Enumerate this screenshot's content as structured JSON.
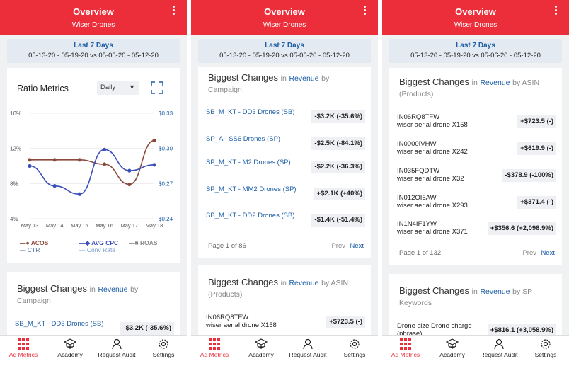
{
  "header": {
    "title": "Overview",
    "subtitle": "Wiser Drones"
  },
  "dates": {
    "period": "Last 7 Days",
    "range": "05-13-20 - 05-19-20  vs  05-06-20 - 05-12-20"
  },
  "nav": [
    {
      "label": "Ad Metrics",
      "icon": "grid-icon"
    },
    {
      "label": "Academy",
      "icon": "graduation-icon"
    },
    {
      "label": "Request Audit",
      "icon": "user-icon"
    },
    {
      "label": "Settings",
      "icon": "gear-icon"
    }
  ],
  "ratio": {
    "title": "Ratio Metrics",
    "granularity": "Daily",
    "legend": {
      "acos": "ACOS",
      "avg_cpc": "AVG CPC",
      "roas": "ROAS",
      "ctr": "CTR",
      "conv_rate": "Conv Rate"
    },
    "colors": {
      "acos": "#8b4a3a",
      "avg_cpc": "#3a4fb8",
      "roas": "#aaaaaa",
      "ctr": "#4a6fa0",
      "conv_rate": "#7a9ac8"
    }
  },
  "chart_data": {
    "type": "line",
    "categories": [
      "May 13",
      "May 14",
      "May 15",
      "May 16",
      "May 17",
      "May 18"
    ],
    "y_left_ticks": [
      "16%",
      "12%",
      "8%",
      "4%"
    ],
    "y_right_ticks": [
      "$0.33",
      "$0.30",
      "$0.27",
      "$0.24"
    ],
    "ylim_left": [
      4,
      16
    ],
    "ylim_right": [
      0.24,
      0.33
    ],
    "series": [
      {
        "name": "ACOS",
        "axis": "left",
        "values": [
          10.7,
          10.7,
          10.7,
          10.2,
          7.9,
          12.9
        ]
      },
      {
        "name": "AVG CPC",
        "axis": "right",
        "values": [
          0.285,
          0.268,
          0.261,
          0.299,
          0.281,
          0.286
        ]
      }
    ]
  },
  "campaign": {
    "title": "Biggest Changes",
    "in": "in",
    "metric": "Revenue",
    "by": "by",
    "dimension": "Campaign",
    "rows": [
      {
        "name": "SB_M_KT - DD3 Drones (SB)",
        "change": "-$3.2K (-35.6%)"
      },
      {
        "name": "SP_A - SS6 Drones (SP)",
        "change": "-$2.5K (-84.1%)"
      },
      {
        "name": "SP_M_KT - M2 Drones (SP)",
        "change": "-$2.2K (-36.3%)"
      },
      {
        "name": "SP_M_KT - MM2 Drones (SP)",
        "change": "+$2.1K (+40%)"
      },
      {
        "name": "SB_M_KT - DD2 Drones (SB)",
        "change": "-$1.4K (-51.4%)"
      }
    ],
    "page": "Page 1 of 86",
    "prev": "Prev",
    "next": "Next"
  },
  "asin": {
    "title": "Biggest Changes",
    "in": "in",
    "metric": "Revenue",
    "by": "by ASIN",
    "dimension": "(Products)",
    "rows": [
      {
        "code": "IN06RQ8TFW",
        "desc": "wiser aerial drone  X158",
        "change": "+$723.5 (-)"
      },
      {
        "code": "IN0000IVHW",
        "desc": "wiser aerial drone  X242",
        "change": "+$619.9 (-)"
      },
      {
        "code": "IN035FQDTW",
        "desc": "wiser aerial drone  X32",
        "change": "-$378.9 (-100%)"
      },
      {
        "code": "IN012OI6AW",
        "desc": "wiser aerial drone  X293",
        "change": "+$371.4 (-)"
      },
      {
        "code": "IN1N4IF1YW",
        "desc": "wiser aerial drone  X371",
        "change": "+$356.6 (+2,098.9%)"
      }
    ],
    "page": "Page 1 of 132",
    "prev": "Prev",
    "next": "Next"
  },
  "sp": {
    "title": "Biggest Changes",
    "in": "in",
    "metric": "Revenue",
    "by": "by SP",
    "dimension": "Keywords",
    "rows": [
      {
        "name": "Drone size Drone charge (phrase)",
        "change": "+$816.1 (+3,058.9%)"
      }
    ]
  }
}
